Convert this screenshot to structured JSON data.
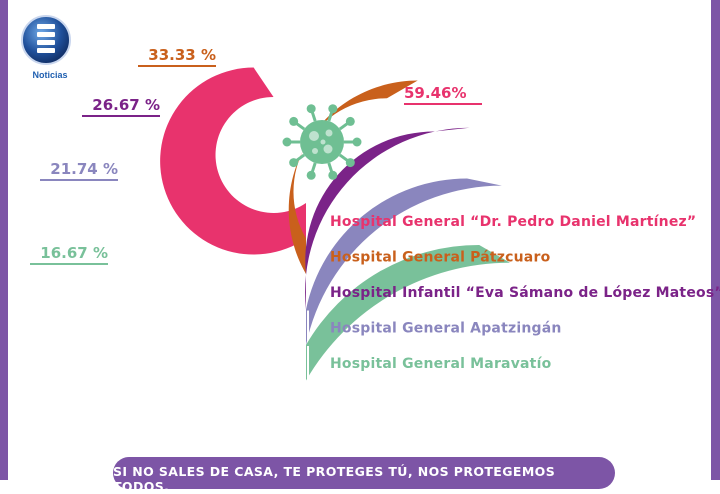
{
  "brand": {
    "logo_text": "Noticias"
  },
  "chart_data": {
    "type": "radial-bar",
    "values": [
      59.46,
      33.33,
      26.67,
      21.74,
      16.67
    ],
    "labels": [
      "59.46%",
      "33.33 %",
      "26.67 %",
      "21.74 %",
      "16.67 %"
    ],
    "legend": [
      "Hospital General “Dr. Pedro Daniel Martínez”",
      "Hospital General Pátzcuaro",
      "Hospital Infantil “Eva Sámano de López Mateos”",
      "Hospital General Apatzingán",
      "Hospital General Maravatío"
    ],
    "colors": [
      "#e8336d",
      "#c9601c",
      "#7b2388",
      "#8a86be",
      "#79c19a"
    ],
    "center_icon": "virus-icon"
  },
  "footer": {
    "slogan": "SI NO SALES DE CASA, TE PROTEGES TÚ, NOS PROTEGEMOS TODOS."
  }
}
